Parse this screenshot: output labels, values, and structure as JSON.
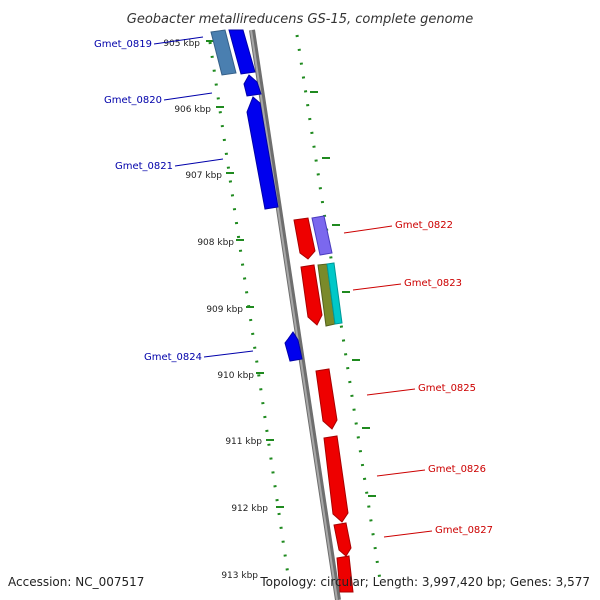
{
  "title": "Geobacter metallireducens GS-15, complete genome",
  "footer": {
    "accession": "Accession: NC_007517",
    "topology": "Topology: circular; Length: 3,997,420 bp; Genes: 3,577"
  },
  "ticks": [
    "905 kbp",
    "906 kbp",
    "907 kbp",
    "908 kbp",
    "909 kbp",
    "910 kbp",
    "911 kbp",
    "912 kbp",
    "913 kbp"
  ],
  "genes": {
    "g0819": "Gmet_0819",
    "g0820": "Gmet_0820",
    "g0821": "Gmet_0821",
    "g0822": "Gmet_0822",
    "g0823": "Gmet_0823",
    "g0824": "Gmet_0824",
    "g0825": "Gmet_0825",
    "g0826": "Gmet_0826",
    "g0827": "Gmet_0827"
  },
  "colors": {
    "reverse_strand": "#0000ee",
    "forward_strand": "#ee0000",
    "backbone": "#888888",
    "ticks": "#1f8a1f",
    "label_reverse": "#0000aa",
    "label_forward": "#cc0000",
    "feature_steelblue": "#4a7fb0",
    "feature_purple": "#7b68ee",
    "feature_olive": "#7a8a2a",
    "feature_cyan": "#00c8c8"
  }
}
